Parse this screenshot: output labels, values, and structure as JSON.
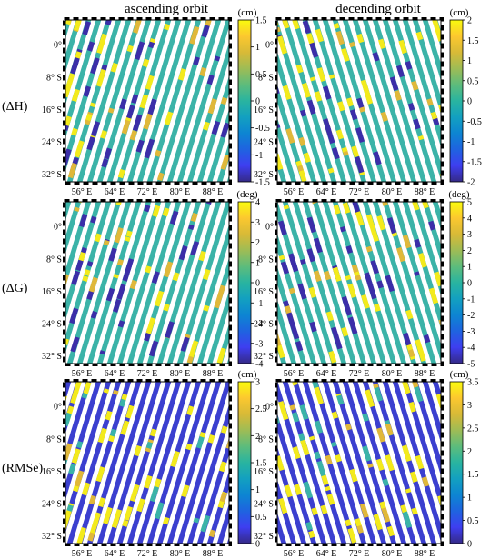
{
  "figure": {
    "column_titles": [
      "ascending orbit",
      "decending orbit"
    ],
    "row_labels": [
      "(ΔH)",
      "(ΔG)",
      "(RMSe)"
    ],
    "lon_ticks": [
      "56° E",
      "64° E",
      "72° E",
      "80° E",
      "88° E"
    ],
    "lat_ticks": [
      "0°",
      "8° S",
      "16° S",
      "24° S",
      "32° S"
    ]
  },
  "panels": [
    {
      "id": "dh-asc",
      "row": 0,
      "col": 0,
      "unit": "(cm)",
      "cmin": -1.5,
      "cmax": 1.5,
      "cticks": [
        "1.5",
        "1",
        "0.5",
        "0",
        "-0.5",
        "-1",
        "-1.5"
      ],
      "background": "teal",
      "tracks": "ascending"
    },
    {
      "id": "dh-desc",
      "row": 0,
      "col": 1,
      "unit": "(cm)",
      "cmin": -2,
      "cmax": 2,
      "cticks": [
        "2",
        "1.5",
        "1",
        "0.5",
        "0",
        "-0.5",
        "-1",
        "-1.5",
        "-2"
      ],
      "background": "teal",
      "tracks": "descending"
    },
    {
      "id": "dg-asc",
      "row": 1,
      "col": 0,
      "unit": "(deg)",
      "cmin": -4,
      "cmax": 4,
      "cticks": [
        "4",
        "3",
        "2",
        "1",
        "0",
        "-1",
        "-2",
        "-3",
        "-4"
      ],
      "background": "teal",
      "tracks": "ascending"
    },
    {
      "id": "dg-desc",
      "row": 1,
      "col": 1,
      "unit": "(deg)",
      "cmin": -5,
      "cmax": 5,
      "cticks": [
        "5",
        "4",
        "3",
        "2",
        "1",
        "0",
        "-1",
        "-2",
        "-3",
        "-4",
        "-5"
      ],
      "background": "teal",
      "tracks": "descending"
    },
    {
      "id": "rms-asc",
      "row": 2,
      "col": 0,
      "unit": "(cm)",
      "cmin": 0,
      "cmax": 3,
      "cticks": [
        "3",
        "2.5",
        "2",
        "1.5",
        "1",
        "0.5",
        "0"
      ],
      "background": "blue",
      "tracks": "ascending"
    },
    {
      "id": "rms-desc",
      "row": 2,
      "col": 1,
      "unit": "(cm)",
      "cmin": 0,
      "cmax": 3.5,
      "cticks": [
        "3.5",
        "3",
        "2.5",
        "2",
        "1.5",
        "1",
        "0.5",
        "0"
      ],
      "background": "blue",
      "tracks": "descending"
    }
  ],
  "colors": {
    "parula": [
      "#352a87",
      "#3e3ef0",
      "#1f63e0",
      "#0d85d2",
      "#13a0c0",
      "#29b4a0",
      "#5dbc7c",
      "#9ebc55",
      "#d8ba37",
      "#fcc82f",
      "#f9fb0e"
    ],
    "track_teal": "#3bb3a8",
    "track_blue": "#3b3fcf",
    "anomaly_yellow": "#f3ea1c",
    "anomaly_dark": "#3b2ea8",
    "anomaly_orange": "#e0b83a"
  }
}
